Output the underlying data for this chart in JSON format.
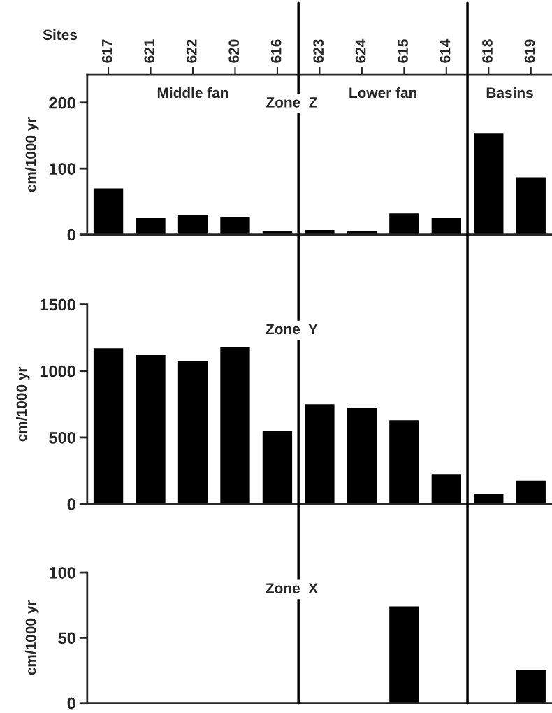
{
  "chart_data": [
    {
      "type": "bar",
      "title": "Zone  Z",
      "xlabel": "Sites",
      "ylabel": "cm/1000 yr",
      "categories": [
        "617",
        "621",
        "622",
        "620",
        "616",
        "623",
        "624",
        "615",
        "614",
        "618",
        "619"
      ],
      "series": [
        {
          "color": "#000000",
          "values": [
            70,
            25,
            30,
            26,
            6,
            7,
            5,
            32,
            25,
            154,
            87
          ]
        }
      ],
      "ylim": [
        0,
        242
      ],
      "yticks": [
        0,
        100,
        200
      ],
      "annotations": [
        "Middle fan",
        "Lower fan",
        "Basins"
      ]
    },
    {
      "type": "bar",
      "title": "Zone  Y",
      "ylabel": "cm/1000 yr",
      "categories": [
        "617",
        "621",
        "622",
        "620",
        "616",
        "623",
        "624",
        "615",
        "614",
        "618",
        "619"
      ],
      "series": [
        {
          "color": "#000000",
          "values": [
            1170,
            1120,
            1075,
            1180,
            550,
            750,
            725,
            630,
            225,
            80,
            175
          ]
        }
      ],
      "ylim": [
        0,
        1500
      ],
      "yticks": [
        0,
        500,
        1000,
        1500
      ],
      "tick_labels": "y"
    },
    {
      "type": "bar",
      "title": "Zone  X",
      "ylabel": "cm/1000 yr",
      "categories": [
        "617",
        "621",
        "622",
        "620",
        "616",
        "623",
        "624",
        "615",
        "614",
        "618",
        "619"
      ],
      "series": [
        {
          "color": "#000000",
          "values": [
            null,
            null,
            null,
            null,
            null,
            null,
            null,
            74,
            null,
            null,
            25
          ]
        }
      ],
      "ylim": [
        0,
        100
      ],
      "yticks": [
        0,
        50,
        100
      ],
      "tick_labels": "y"
    }
  ]
}
